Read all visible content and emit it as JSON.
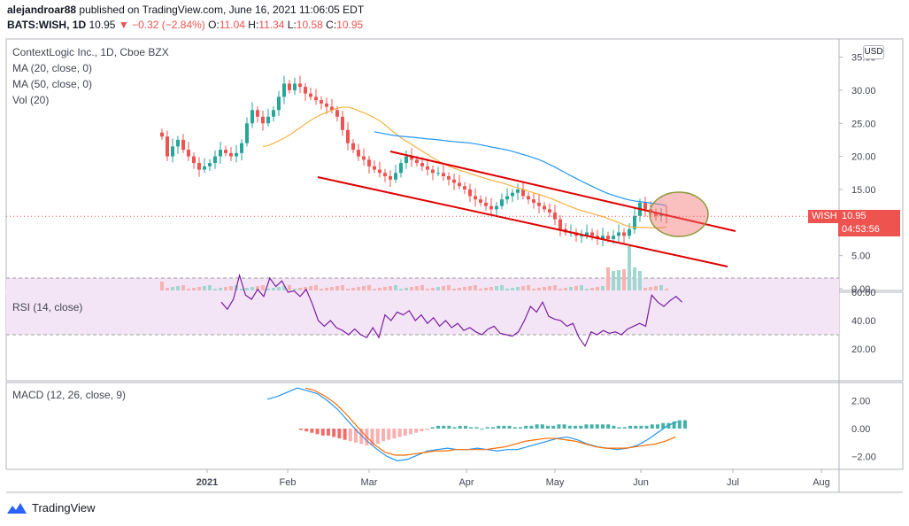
{
  "header": {
    "user": "alejandroar88",
    "published_text": "published on TradingView.com, June 16, 2021 11:06:05 EDT",
    "symbol": "BATS:WISH, 1D",
    "last": "10.95",
    "arrow": "▼",
    "change": "−0.32 (−2.84%)",
    "o_label": "O:",
    "o_value": "11.04",
    "h_label": "H:",
    "h_value": "11.34",
    "l_label": "L:",
    "l_value": "10.58",
    "c_label": "C:",
    "c_value": "10.95"
  },
  "legend": {
    "title": "ContextLogic Inc., 1D, Cboe BZX",
    "ma20": "MA (20, close, 0)",
    "ma50": "MA (50, close, 0)",
    "vol": "Vol (20)",
    "rsi": "RSI (14, close)",
    "macd": "MACD (12, 26, close, 9)"
  },
  "currency_button": "USD",
  "price_tag": {
    "symbol": "WISH",
    "price": "10.95",
    "countdown": "04:53:56"
  },
  "footer": {
    "brand": "TradingView"
  },
  "colors": {
    "up": "#26a69a",
    "down": "#ef5350",
    "ma20": "#f5b041",
    "ma50": "#2196f3",
    "trendline": "#e00000",
    "rsi_line": "#7b1fa2",
    "rsi_band": "#f3e5f5",
    "macd_line": "#2196f3",
    "signal_line": "#ff6d00"
  },
  "chart_data": [
    {
      "type": "candlestick",
      "title": "ContextLogic Inc., 1D, Cboe BZX",
      "x_ticks": [
        "2021",
        "Feb",
        "Mar",
        "Apr",
        "May",
        "Jun",
        "Jul",
        "Aug"
      ],
      "y_ticks": [
        "35.00",
        "30.00",
        "25.00",
        "20.00",
        "15.00",
        "10.00",
        "5.00",
        "0.00"
      ],
      "ylim": [
        0,
        36
      ],
      "close_series": [
        23,
        20,
        21.5,
        22.5,
        21,
        20,
        19,
        18,
        18.5,
        19,
        20,
        21,
        20.5,
        20,
        20.5,
        22,
        25,
        27,
        26,
        25,
        26,
        27,
        29,
        31,
        30,
        31,
        30.5,
        29.5,
        29,
        28.5,
        28,
        27.5,
        27,
        26,
        24,
        22,
        21,
        20,
        19.5,
        18.5,
        18,
        17.5,
        17,
        16.5,
        17.5,
        19,
        20,
        19.5,
        19,
        18.5,
        18,
        17.5,
        17.5,
        17,
        16.5,
        16,
        15.5,
        15,
        14,
        13.5,
        13,
        12.5,
        12,
        12.5,
        13.5,
        14,
        14.5,
        15,
        14,
        13.5,
        13,
        12.5,
        12,
        11.5,
        10.5,
        9,
        8.5,
        8.5,
        8,
        8,
        8.5,
        8,
        7.5,
        8,
        7.5,
        8,
        8.5,
        8,
        9,
        11,
        13,
        12,
        11.5,
        11,
        11.27,
        10.95
      ],
      "annotations": [
        "descending channel (two red trendlines)",
        "highlighted breakout ellipse"
      ],
      "last_price": 10.95
    },
    {
      "type": "line",
      "title": "RSI (14, close)",
      "y_ticks": [
        "60.00",
        "40.00",
        "20.00"
      ],
      "band": [
        30,
        70
      ],
      "values": [
        53,
        48,
        55,
        72,
        58,
        55,
        62,
        57,
        70,
        64,
        68,
        60,
        61,
        57,
        62,
        52,
        40,
        36,
        40,
        35,
        33,
        30,
        34,
        30,
        28,
        35,
        28,
        44,
        40,
        46,
        44,
        47,
        40,
        44,
        38,
        42,
        36,
        40,
        35,
        38,
        33,
        35,
        32,
        30,
        34,
        36,
        31,
        30,
        29,
        32,
        40,
        50,
        46,
        53,
        43,
        41,
        40,
        36,
        38,
        28,
        22,
        32,
        30,
        33,
        31,
        32,
        30,
        34,
        36,
        38,
        36,
        58,
        53,
        50,
        54,
        57,
        53
      ]
    },
    {
      "type": "bar+line",
      "title": "MACD (12, 26, close, 9)",
      "y_ticks": [
        "2.00",
        "0.00",
        "−2.00"
      ],
      "macd": [
        2.1,
        2.3,
        2.6,
        2.9,
        2.7,
        2.5,
        2.0,
        1.4,
        0.6,
        -0.2,
        -0.9,
        -1.5,
        -2.0,
        -2.3,
        -2.2,
        -1.9,
        -1.6,
        -1.5,
        -1.4,
        -1.5,
        -1.5,
        -1.4,
        -1.5,
        -1.6,
        -1.5,
        -1.5,
        -1.3,
        -1.1,
        -0.9,
        -0.7,
        -0.6,
        -0.8,
        -1.1,
        -1.3,
        -1.4,
        -1.5,
        -1.4,
        -1.2,
        -0.8,
        -0.3,
        0.2,
        0.5
      ],
      "signal": [
        2.9,
        2.7,
        2.3,
        1.8,
        1.1,
        0.3,
        -0.5,
        -1.2,
        -1.7,
        -1.9,
        -1.9,
        -1.8,
        -1.7,
        -1.6,
        -1.6,
        -1.5,
        -1.5,
        -1.5,
        -1.5,
        -1.4,
        -1.3,
        -1.1,
        -0.9,
        -0.8,
        -0.7,
        -0.7,
        -0.8,
        -0.9,
        -1.1,
        -1.3,
        -1.4,
        -1.4,
        -1.4,
        -1.3,
        -1.2,
        -1.1,
        -0.9,
        -0.6
      ],
      "histogram": [
        -0.1,
        -0.2,
        -0.3,
        -0.4,
        -0.5,
        -0.5,
        -0.6,
        -0.7,
        -0.8,
        -0.9,
        -1.0,
        -1.1,
        -1.2,
        -1.2,
        -1.1,
        -0.9,
        -0.8,
        -0.7,
        -0.6,
        -0.5,
        -0.4,
        -0.3,
        -0.2,
        -0.1,
        0.1,
        0.2,
        0.2,
        0.2,
        0.1,
        0.2,
        0.2,
        0.1,
        0.1,
        0.0,
        0.1,
        0.1,
        0.2,
        0.2,
        0.2,
        0.1,
        0.1,
        0.2,
        0.2,
        0.3,
        0.3,
        0.2,
        0.2,
        0.3,
        0.3,
        0.2,
        0.2,
        0.2,
        0.3,
        0.3,
        0.3,
        0.3,
        0.3,
        0.2,
        0.1,
        0.1,
        0.2,
        0.2,
        0.2,
        0.2,
        0.3,
        0.3,
        0.4,
        0.4,
        0.5,
        0.6,
        0.6
      ]
    }
  ]
}
